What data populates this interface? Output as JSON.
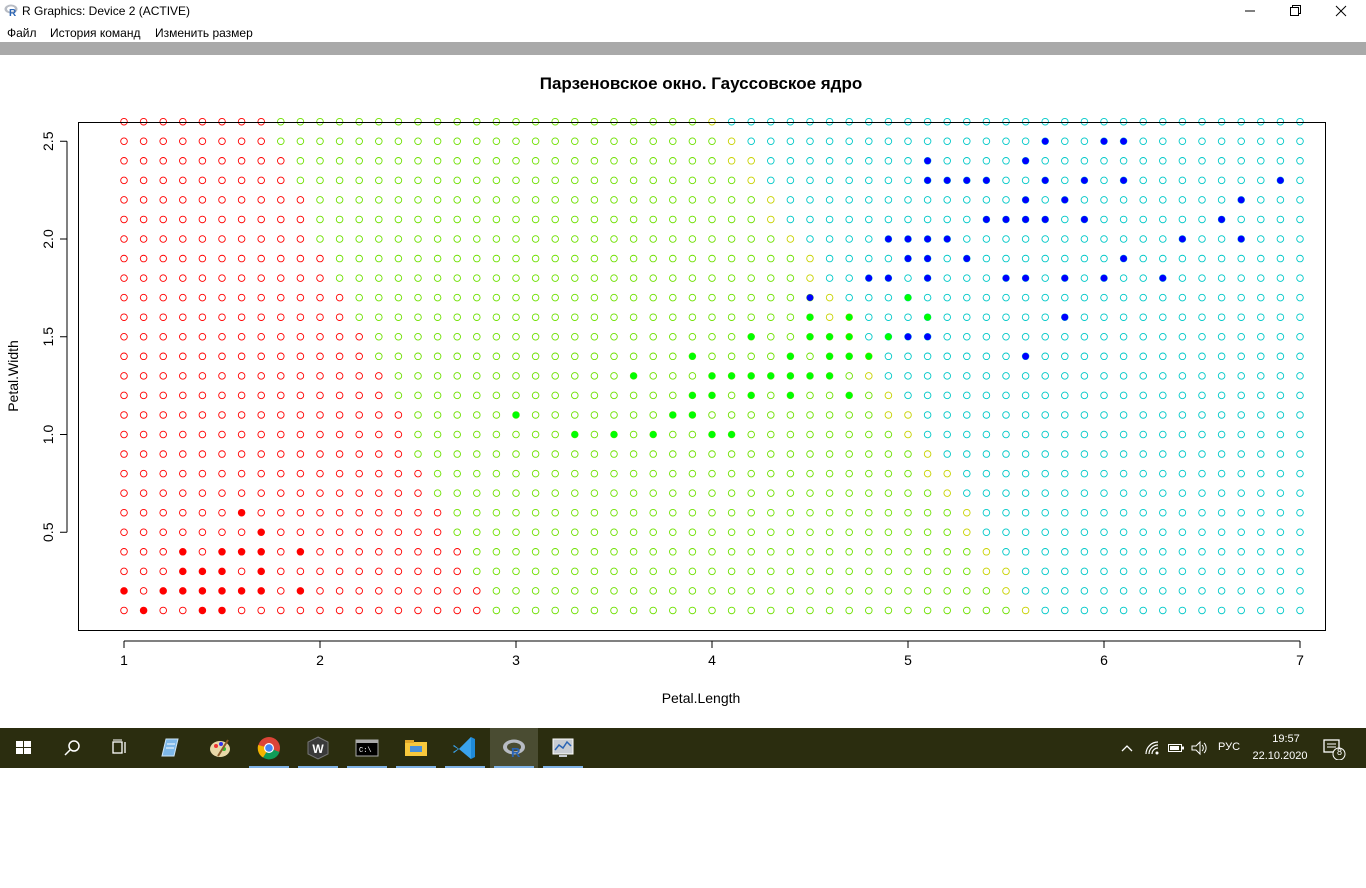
{
  "window": {
    "title": "R Graphics: Device 2 (ACTIVE)",
    "app_icon": "r-logo-icon",
    "controls": [
      "minimize-icon",
      "maximize-icon",
      "close-icon"
    ]
  },
  "menu": {
    "items": [
      "Файл",
      "История команд",
      "Изменить размер"
    ]
  },
  "chart_data": {
    "type": "scatter",
    "title": "Парзеновское окно. Гауссовское ядро",
    "xlabel": "Petal.Length",
    "ylabel": "Petal.Width",
    "xlim": [
      1,
      7
    ],
    "ylim": [
      0,
      2.6
    ],
    "xticks": [
      "1",
      "2",
      "3",
      "4",
      "5",
      "6",
      "7"
    ],
    "yticks": [
      "0.5",
      "1.0",
      "1.5",
      "2.0",
      "2.5"
    ],
    "grid": {
      "x_step": 0.1,
      "y_step": 0.1,
      "x_range": [
        1,
        7
      ],
      "y_range": [
        0.1,
        2.6
      ],
      "marker": "open-circle",
      "classes": [
        "setosa",
        "versicolor",
        "virginica"
      ]
    },
    "colors": {
      "setosa": "#ff0000",
      "versicolor": "#00ff00",
      "virginica": "#0000ff",
      "virginica_grid": "#00c8c8",
      "boundary_mix": "#c8d200"
    },
    "series": [
      {
        "class": "setosa",
        "color": "#ff0000",
        "points": [
          [
            1.0,
            0.2
          ],
          [
            1.1,
            0.1
          ],
          [
            1.2,
            0.2
          ],
          [
            1.3,
            0.2
          ],
          [
            1.3,
            0.3
          ],
          [
            1.3,
            0.4
          ],
          [
            1.4,
            0.1
          ],
          [
            1.4,
            0.2
          ],
          [
            1.4,
            0.3
          ],
          [
            1.5,
            0.1
          ],
          [
            1.5,
            0.2
          ],
          [
            1.5,
            0.3
          ],
          [
            1.5,
            0.4
          ],
          [
            1.6,
            0.2
          ],
          [
            1.6,
            0.4
          ],
          [
            1.6,
            0.6
          ],
          [
            1.7,
            0.2
          ],
          [
            1.7,
            0.3
          ],
          [
            1.7,
            0.4
          ],
          [
            1.7,
            0.5
          ],
          [
            1.9,
            0.2
          ],
          [
            1.9,
            0.4
          ]
        ]
      },
      {
        "class": "versicolor",
        "color": "#00ff00",
        "points": [
          [
            3.0,
            1.1
          ],
          [
            3.3,
            1.0
          ],
          [
            3.5,
            1.0
          ],
          [
            3.6,
            1.3
          ],
          [
            3.7,
            1.0
          ],
          [
            3.8,
            1.1
          ],
          [
            3.9,
            1.1
          ],
          [
            3.9,
            1.2
          ],
          [
            3.9,
            1.4
          ],
          [
            4.0,
            1.0
          ],
          [
            4.0,
            1.2
          ],
          [
            4.0,
            1.3
          ],
          [
            4.1,
            1.0
          ],
          [
            4.1,
            1.3
          ],
          [
            4.2,
            1.2
          ],
          [
            4.2,
            1.3
          ],
          [
            4.2,
            1.5
          ],
          [
            4.3,
            1.3
          ],
          [
            4.4,
            1.2
          ],
          [
            4.4,
            1.3
          ],
          [
            4.4,
            1.4
          ],
          [
            4.5,
            1.3
          ],
          [
            4.5,
            1.5
          ],
          [
            4.5,
            1.6
          ],
          [
            4.6,
            1.3
          ],
          [
            4.6,
            1.4
          ],
          [
            4.6,
            1.5
          ],
          [
            4.7,
            1.2
          ],
          [
            4.7,
            1.4
          ],
          [
            4.7,
            1.5
          ],
          [
            4.7,
            1.6
          ],
          [
            4.8,
            1.4
          ],
          [
            4.9,
            1.5
          ],
          [
            5.0,
            1.7
          ],
          [
            5.1,
            1.6
          ]
        ]
      },
      {
        "class": "virginica",
        "color": "#0000ff",
        "points": [
          [
            4.5,
            1.7
          ],
          [
            4.8,
            1.8
          ],
          [
            4.9,
            1.8
          ],
          [
            4.9,
            2.0
          ],
          [
            5.0,
            1.5
          ],
          [
            5.0,
            1.9
          ],
          [
            5.0,
            2.0
          ],
          [
            5.1,
            1.5
          ],
          [
            5.1,
            1.8
          ],
          [
            5.1,
            1.9
          ],
          [
            5.1,
            2.0
          ],
          [
            5.1,
            2.3
          ],
          [
            5.1,
            2.4
          ],
          [
            5.2,
            2.0
          ],
          [
            5.2,
            2.3
          ],
          [
            5.3,
            1.9
          ],
          [
            5.3,
            2.3
          ],
          [
            5.4,
            2.1
          ],
          [
            5.4,
            2.3
          ],
          [
            5.5,
            1.8
          ],
          [
            5.5,
            2.1
          ],
          [
            5.6,
            1.4
          ],
          [
            5.6,
            1.8
          ],
          [
            5.6,
            2.1
          ],
          [
            5.6,
            2.2
          ],
          [
            5.6,
            2.4
          ],
          [
            5.7,
            2.1
          ],
          [
            5.7,
            2.3
          ],
          [
            5.7,
            2.5
          ],
          [
            5.8,
            1.6
          ],
          [
            5.8,
            1.8
          ],
          [
            5.8,
            2.2
          ],
          [
            5.9,
            2.1
          ],
          [
            5.9,
            2.3
          ],
          [
            6.0,
            1.8
          ],
          [
            6.0,
            2.5
          ],
          [
            6.1,
            1.9
          ],
          [
            6.1,
            2.3
          ],
          [
            6.1,
            2.5
          ],
          [
            6.3,
            1.8
          ],
          [
            6.4,
            2.0
          ],
          [
            6.6,
            2.1
          ],
          [
            6.7,
            2.0
          ],
          [
            6.7,
            2.2
          ],
          [
            6.9,
            2.3
          ]
        ]
      }
    ]
  },
  "taskbar": {
    "items": [
      "windows-start-icon",
      "search-icon",
      "task-view-icon",
      "notepad-icon",
      "paint-icon",
      "chrome-icon",
      "w-app-icon",
      "terminal-icon",
      "file-explorer-icon",
      "vscode-icon",
      "r-gui-icon",
      "network-monitor-icon"
    ],
    "tray": [
      "chevron-up-icon",
      "wifi-icon",
      "battery-icon",
      "volume-icon"
    ],
    "language": "РУС",
    "time": "19:57",
    "date": "22.10.2020",
    "notification_count": "8"
  }
}
